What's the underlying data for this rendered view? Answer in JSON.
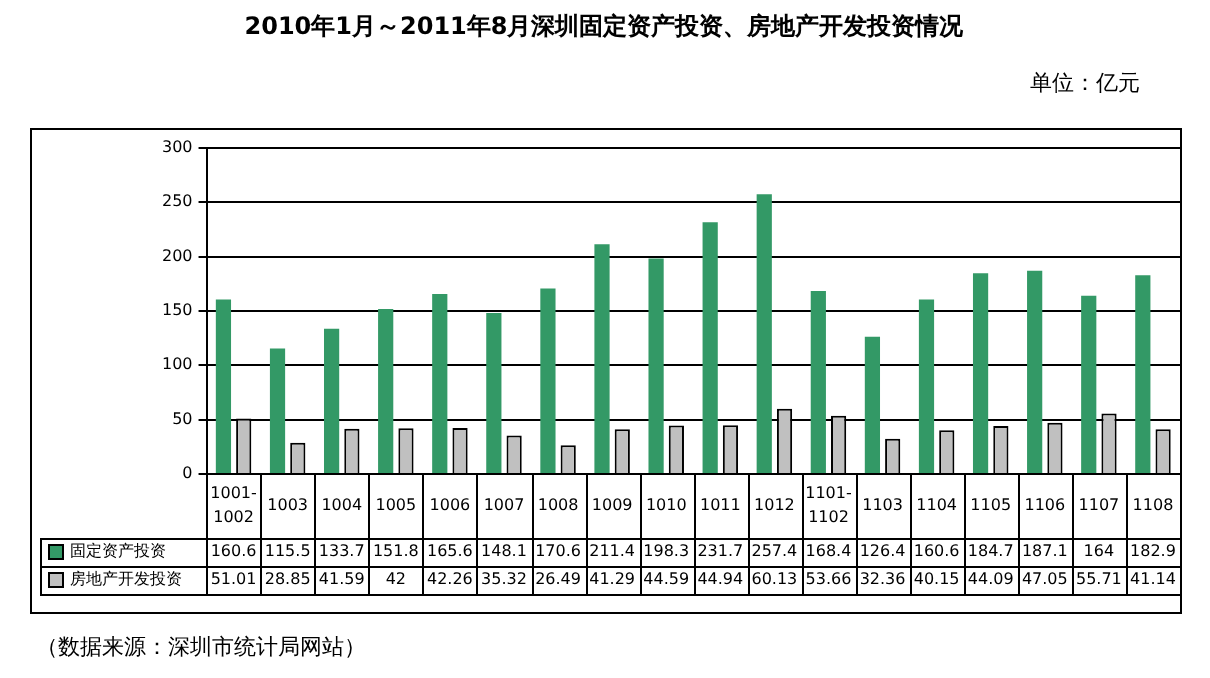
{
  "chart_data": {
    "type": "bar",
    "title": "2010年1月～2011年8月深圳固定资产投资、房地产开发投资情况",
    "annotations": [
      "单位：亿元",
      "（数据来源：深圳市统计局网站）"
    ],
    "categories": [
      "1001-1002",
      "1003",
      "1004",
      "1005",
      "1006",
      "1007",
      "1008",
      "1009",
      "1010",
      "1011",
      "1012",
      "1101-1102",
      "1103",
      "1104",
      "1105",
      "1106",
      "1107",
      "1108"
    ],
    "series": [
      {
        "name": "固定资产投资",
        "color": "#339966",
        "values": [
          160.6,
          115.5,
          133.7,
          151.8,
          165.6,
          148.1,
          170.6,
          211.4,
          198.3,
          231.7,
          257.4,
          168.4,
          126.4,
          160.6,
          184.7,
          187.1,
          164,
          182.9
        ]
      },
      {
        "name": "房地产开发投资",
        "color": "#c0c0c0",
        "values": [
          51.01,
          28.85,
          41.59,
          42,
          42.26,
          35.32,
          26.49,
          41.29,
          44.59,
          44.94,
          60.13,
          53.66,
          32.36,
          40.15,
          44.09,
          47.05,
          55.71,
          41.14
        ]
      }
    ],
    "ylim": [
      0,
      300
    ],
    "yticks": [
      0,
      50,
      100,
      150,
      200,
      250,
      300
    ],
    "grid": "y",
    "data_labels": true,
    "legend": "bottom left"
  }
}
